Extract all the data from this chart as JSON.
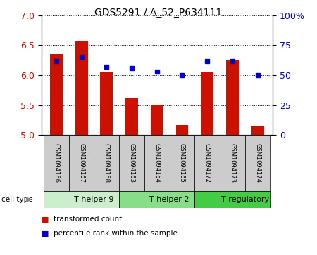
{
  "title": "GDS5291 / A_52_P634111",
  "samples": [
    "GSM1094166",
    "GSM1094167",
    "GSM1094168",
    "GSM1094163",
    "GSM1094164",
    "GSM1094165",
    "GSM1094172",
    "GSM1094173",
    "GSM1094174"
  ],
  "bar_values": [
    6.35,
    6.58,
    6.06,
    5.62,
    5.5,
    5.17,
    6.05,
    6.25,
    5.15
  ],
  "bar_base": 5.0,
  "percentile_values": [
    62,
    65,
    57,
    56,
    53,
    50,
    62,
    62,
    50
  ],
  "left_ylim": [
    5.0,
    7.0
  ],
  "right_ylim": [
    0,
    100
  ],
  "left_yticks": [
    5.0,
    5.5,
    6.0,
    6.5,
    7.0
  ],
  "right_yticks": [
    0,
    25,
    50,
    75,
    100
  ],
  "right_yticklabels": [
    "0",
    "25",
    "50",
    "75",
    "100%"
  ],
  "bar_color": "#CC1100",
  "dot_color": "#0000CC",
  "bar_width": 0.5,
  "cell_types": [
    {
      "label": "T helper 9",
      "start": 0,
      "end": 3,
      "color": "#cceecc"
    },
    {
      "label": "T helper 2",
      "start": 3,
      "end": 6,
      "color": "#88dd88"
    },
    {
      "label": "T regulatory",
      "start": 6,
      "end": 9,
      "color": "#44cc44"
    }
  ],
  "legend_items": [
    {
      "label": "transformed count",
      "color": "#CC1100"
    },
    {
      "label": "percentile rank within the sample",
      "color": "#0000CC"
    }
  ],
  "label_box_color": "#cccccc",
  "cell_type_label": "cell type"
}
